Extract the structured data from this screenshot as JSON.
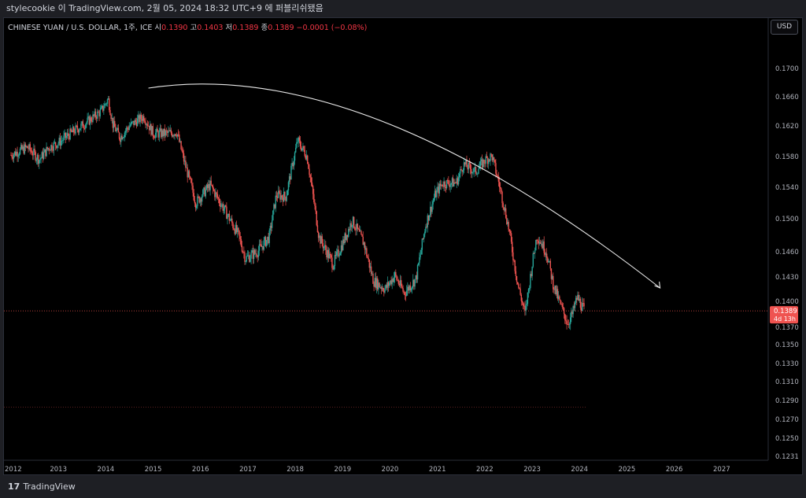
{
  "header": {
    "title": "stylecookie 이 TradingView.com, 2월 05, 2024 18:32 UTC+9 에 퍼블리쉬됐음"
  },
  "legend": {
    "symbol": "CHINESE YUAN / U.S. DOLLAR, 1주, ICE",
    "open_label": "시",
    "open": "0.1390",
    "high_label": "고",
    "high": "0.1403",
    "low_label": "저",
    "low": "0.1389",
    "close_label": "종",
    "close": "0.1389",
    "change": "−0.0001 (−0.08%)"
  },
  "currency_button": "USD",
  "price_badge": {
    "price": "0.1389",
    "countdown": "4d 13h"
  },
  "brand": {
    "logo": "17",
    "name": "TradingView"
  },
  "colors": {
    "up": "#26a69a",
    "down": "#ef5350",
    "background": "#000000",
    "axis_text": "#b2b5be"
  },
  "chart_data": {
    "type": "line",
    "title": "CHINESE YUAN / U.S. DOLLAR, 1주, ICE",
    "y_tick_labels": [
      "0.1700",
      "0.1660",
      "0.1620",
      "0.1580",
      "0.1540",
      "0.1500",
      "0.1460",
      "0.1430",
      "0.1400",
      "0.1370",
      "0.1350",
      "0.1330",
      "0.1310",
      "0.1290",
      "0.1270",
      "0.1250",
      "0.1231"
    ],
    "x_tick_labels": [
      "2012",
      "2013",
      "2014",
      "2015",
      "2016",
      "2017",
      "2018",
      "2019",
      "2020",
      "2021",
      "2022",
      "2023",
      "2024",
      "2025",
      "2026",
      "2027"
    ],
    "series": [
      {
        "values": [
          [
            2012.0,
            0.1582
          ],
          [
            2012.2,
            0.1588
          ],
          [
            2012.35,
            0.1592
          ],
          [
            2012.6,
            0.1576
          ],
          [
            2012.8,
            0.1592
          ],
          [
            2013.0,
            0.1598
          ],
          [
            2013.3,
            0.1612
          ],
          [
            2013.6,
            0.1625
          ],
          [
            2013.9,
            0.164
          ],
          [
            2014.05,
            0.1657
          ],
          [
            2014.15,
            0.1622
          ],
          [
            2014.3,
            0.1605
          ],
          [
            2014.5,
            0.162
          ],
          [
            2014.8,
            0.1633
          ],
          [
            2015.0,
            0.161
          ],
          [
            2015.3,
            0.161
          ],
          [
            2015.5,
            0.1612
          ],
          [
            2015.65,
            0.1575
          ],
          [
            2015.9,
            0.152
          ],
          [
            2016.2,
            0.1543
          ],
          [
            2016.5,
            0.1512
          ],
          [
            2016.8,
            0.148
          ],
          [
            2016.95,
            0.1452
          ],
          [
            2017.2,
            0.146
          ],
          [
            2017.45,
            0.1478
          ],
          [
            2017.6,
            0.153
          ],
          [
            2017.8,
            0.1528
          ],
          [
            2018.05,
            0.1601
          ],
          [
            2018.25,
            0.158
          ],
          [
            2018.5,
            0.1478
          ],
          [
            2018.8,
            0.1445
          ],
          [
            2019.0,
            0.147
          ],
          [
            2019.2,
            0.1498
          ],
          [
            2019.45,
            0.147
          ],
          [
            2019.65,
            0.1425
          ],
          [
            2019.9,
            0.1415
          ],
          [
            2020.1,
            0.1432
          ],
          [
            2020.3,
            0.141
          ],
          [
            2020.55,
            0.1428
          ],
          [
            2020.75,
            0.1492
          ],
          [
            2020.95,
            0.153
          ],
          [
            2021.1,
            0.1545
          ],
          [
            2021.4,
            0.1546
          ],
          [
            2021.55,
            0.157
          ],
          [
            2021.8,
            0.156
          ],
          [
            2022.0,
            0.1575
          ],
          [
            2022.15,
            0.1581
          ],
          [
            2022.3,
            0.1545
          ],
          [
            2022.5,
            0.149
          ],
          [
            2022.7,
            0.142
          ],
          [
            2022.85,
            0.1385
          ],
          [
            2023.0,
            0.1445
          ],
          [
            2023.1,
            0.148
          ],
          [
            2023.3,
            0.146
          ],
          [
            2023.45,
            0.142
          ],
          [
            2023.6,
            0.1395
          ],
          [
            2023.75,
            0.1375
          ],
          [
            2023.85,
            0.1385
          ],
          [
            2023.95,
            0.1405
          ],
          [
            2024.1,
            0.1389
          ]
        ]
      }
    ],
    "annotation": "curved-arrow",
    "horizontal_levels": [
      0.1389,
      0.1288
    ]
  }
}
